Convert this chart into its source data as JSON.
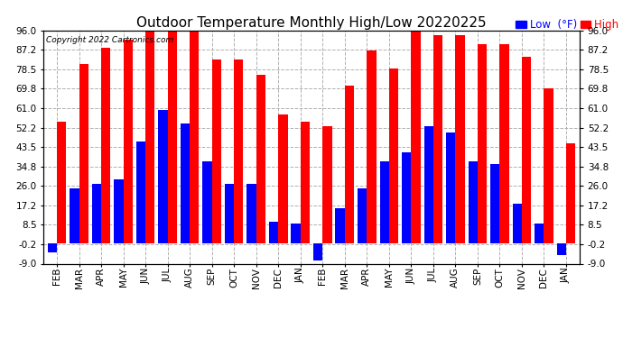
{
  "title": "Outdoor Temperature Monthly High/Low 20220225",
  "copyright": "Copyright 2022 Cartronics.com",
  "categories": [
    "FEB",
    "MAR",
    "APR",
    "MAY",
    "JUN",
    "JUL",
    "AUG",
    "SEP",
    "OCT",
    "NOV",
    "DEC",
    "JAN",
    "FEB",
    "MAR",
    "APR",
    "MAY",
    "JUN",
    "JUL",
    "AUG",
    "SEP",
    "OCT",
    "NOV",
    "DEC",
    "JAN"
  ],
  "high": [
    55,
    81,
    88,
    92,
    96,
    96,
    96,
    83,
    83,
    76,
    58,
    55,
    53,
    71,
    87,
    79,
    96,
    94,
    94,
    90,
    90,
    84,
    70,
    45
  ],
  "low": [
    -4,
    25,
    27,
    29,
    46,
    60,
    54,
    37,
    27,
    27,
    10,
    9,
    -7.5,
    16,
    25,
    37,
    41,
    53,
    50,
    37,
    36,
    18,
    9,
    -5
  ],
  "ylim": [
    -9.0,
    96.0
  ],
  "yticks": [
    -9.0,
    -0.2,
    8.5,
    17.2,
    26.0,
    34.8,
    43.5,
    52.2,
    61.0,
    69.8,
    78.5,
    87.2,
    96.0
  ],
  "ytick_labels": [
    "-9.0",
    "-0.2",
    "8.5",
    "17.2",
    "26.0",
    "34.8",
    "43.5",
    "52.2",
    "61.0",
    "69.8",
    "78.5",
    "87.2",
    "96.0"
  ],
  "high_color": "#ff0000",
  "low_color": "#0000ff",
  "background_color": "#ffffff",
  "grid_color": "#b0b0b0",
  "bar_width": 0.42,
  "title_fontsize": 11,
  "tick_fontsize": 7.5,
  "legend_fontsize": 8.5
}
